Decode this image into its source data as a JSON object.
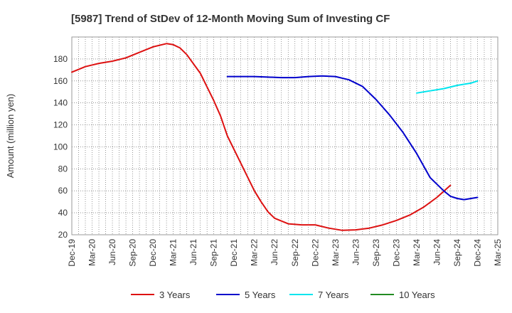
{
  "chart_data": {
    "type": "line",
    "title": "[5987]  Trend of StDev of 12-Month Moving Sum of Investing CF",
    "xlabel": "",
    "ylabel": "Amount (million yen)",
    "ylim": [
      20,
      200
    ],
    "yticks": [
      20,
      40,
      60,
      80,
      100,
      120,
      140,
      160,
      180
    ],
    "x_tick_labels": [
      "Dec-19",
      "Mar-20",
      "Jun-20",
      "Sep-20",
      "Dec-20",
      "Mar-21",
      "Jun-21",
      "Sep-21",
      "Dec-21",
      "Mar-22",
      "Jun-22",
      "Sep-22",
      "Dec-22",
      "Mar-23",
      "Jun-23",
      "Sep-23",
      "Dec-23",
      "Mar-24",
      "Jun-24",
      "Sep-24",
      "Dec-24",
      "Mar-25"
    ],
    "grid": true,
    "legend_position": "bottom",
    "series": [
      {
        "name": "3 Years",
        "color": "#dd1111",
        "points": [
          [
            "Dec-19",
            168
          ],
          [
            "Feb-20",
            173
          ],
          [
            "Apr-20",
            176
          ],
          [
            "Jun-20",
            178
          ],
          [
            "Aug-20",
            181
          ],
          [
            "Oct-20",
            186
          ],
          [
            "Dec-20",
            191
          ],
          [
            "Feb-21",
            194
          ],
          [
            "Mar-21",
            193
          ],
          [
            "Apr-21",
            190
          ],
          [
            "May-21",
            184
          ],
          [
            "Jul-21",
            167
          ],
          [
            "Sep-21",
            142
          ],
          [
            "Oct-21",
            128
          ],
          [
            "Nov-21",
            110
          ],
          [
            "Jan-22",
            85
          ],
          [
            "Mar-22",
            60
          ],
          [
            "Apr-22",
            50
          ],
          [
            "May-22",
            41
          ],
          [
            "Jun-22",
            35
          ],
          [
            "Aug-22",
            30
          ],
          [
            "Oct-22",
            29
          ],
          [
            "Dec-22",
            29
          ],
          [
            "Feb-23",
            26
          ],
          [
            "Apr-23",
            24
          ],
          [
            "Jun-23",
            24.5
          ],
          [
            "Aug-23",
            26
          ],
          [
            "Oct-23",
            29
          ],
          [
            "Dec-23",
            33
          ],
          [
            "Feb-24",
            38
          ],
          [
            "Apr-24",
            45
          ],
          [
            "Jun-24",
            54
          ],
          [
            "Aug-24",
            65
          ]
        ]
      },
      {
        "name": "5 Years",
        "color": "#0000cc",
        "points": [
          [
            "Nov-21",
            164
          ],
          [
            "Jan-22",
            164
          ],
          [
            "Mar-22",
            164
          ],
          [
            "May-22",
            163.5
          ],
          [
            "Jul-22",
            163
          ],
          [
            "Sep-22",
            163
          ],
          [
            "Nov-22",
            164
          ],
          [
            "Jan-23",
            164.5
          ],
          [
            "Mar-23",
            164
          ],
          [
            "May-23",
            161
          ],
          [
            "Jul-23",
            155
          ],
          [
            "Sep-23",
            143
          ],
          [
            "Nov-23",
            129
          ],
          [
            "Jan-24",
            113
          ],
          [
            "Mar-24",
            94
          ],
          [
            "May-24",
            72
          ],
          [
            "Jul-24",
            60
          ],
          [
            "Aug-24",
            55
          ],
          [
            "Sep-24",
            53
          ],
          [
            "Oct-24",
            52
          ],
          [
            "Dec-24",
            54
          ]
        ]
      },
      {
        "name": "7 Years",
        "color": "#00e5ee",
        "points": [
          [
            "Mar-24",
            149
          ],
          [
            "May-24",
            151
          ],
          [
            "Jul-24",
            153
          ],
          [
            "Sep-24",
            156
          ],
          [
            "Nov-24",
            158
          ],
          [
            "Dec-24",
            160
          ]
        ]
      },
      {
        "name": "10 Years",
        "color": "#228b22",
        "points": []
      }
    ]
  }
}
